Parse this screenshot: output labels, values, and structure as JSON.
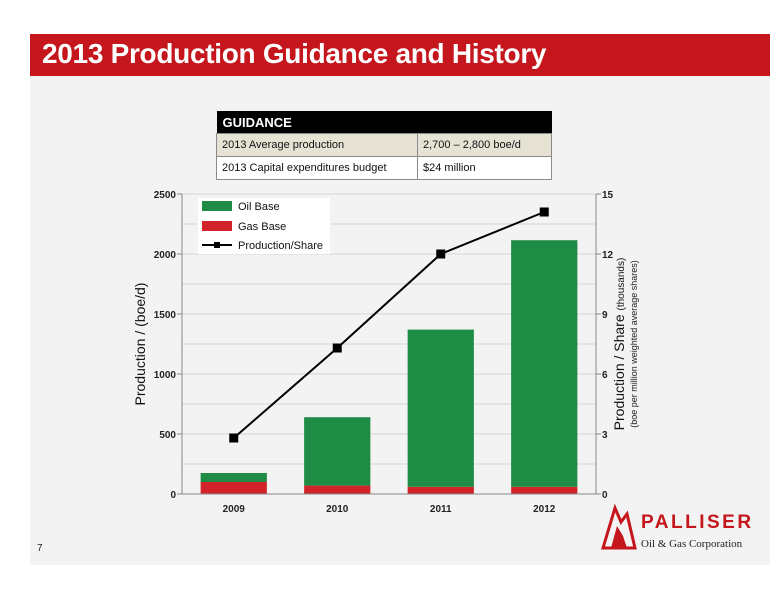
{
  "slide": {
    "title": "2013 Production Guidance and History",
    "page_number": "7"
  },
  "guidance": {
    "header": "GUIDANCE",
    "rows": [
      {
        "label": "2013 Average production",
        "value": "2,700 – 2,800 boe/d"
      },
      {
        "label": "2013 Capital expenditures budget",
        "value": "$24 million"
      }
    ]
  },
  "logo": {
    "name": "PALLISER",
    "subtitle": "Oil & Gas Corporation"
  },
  "colors": {
    "accent": "#c4161c",
    "oil": "#1e8c45",
    "gas": "#d2232a",
    "line": "#000000"
  },
  "chart_data": {
    "type": "bar",
    "categories": [
      "2009",
      "2010",
      "2011",
      "2012"
    ],
    "series": [
      {
        "name": "Gas Base",
        "values": [
          100,
          70,
          60,
          60
        ],
        "axis": "left",
        "stack": "production"
      },
      {
        "name": "Oil Base",
        "values": [
          75,
          570,
          1310,
          2055
        ],
        "axis": "left",
        "stack": "production"
      },
      {
        "name": "Production/Share",
        "type": "line",
        "values": [
          2.8,
          7.3,
          12,
          14.1
        ],
        "axis": "right"
      }
    ],
    "ylabel_main": "Production / (boe/d)",
    "y2label_main": "Production / Share",
    "y2label_paren": "(thousands)",
    "y2label_sub": "(boe per million weighted average shares)",
    "ylim": [
      0,
      2500
    ],
    "yticks": [
      0,
      500,
      1000,
      1500,
      2000,
      2500
    ],
    "y2lim": [
      0,
      15
    ],
    "y2ticks": [
      0,
      3,
      6,
      9,
      12,
      15
    ],
    "legend_position": "top-left",
    "grid": true
  }
}
